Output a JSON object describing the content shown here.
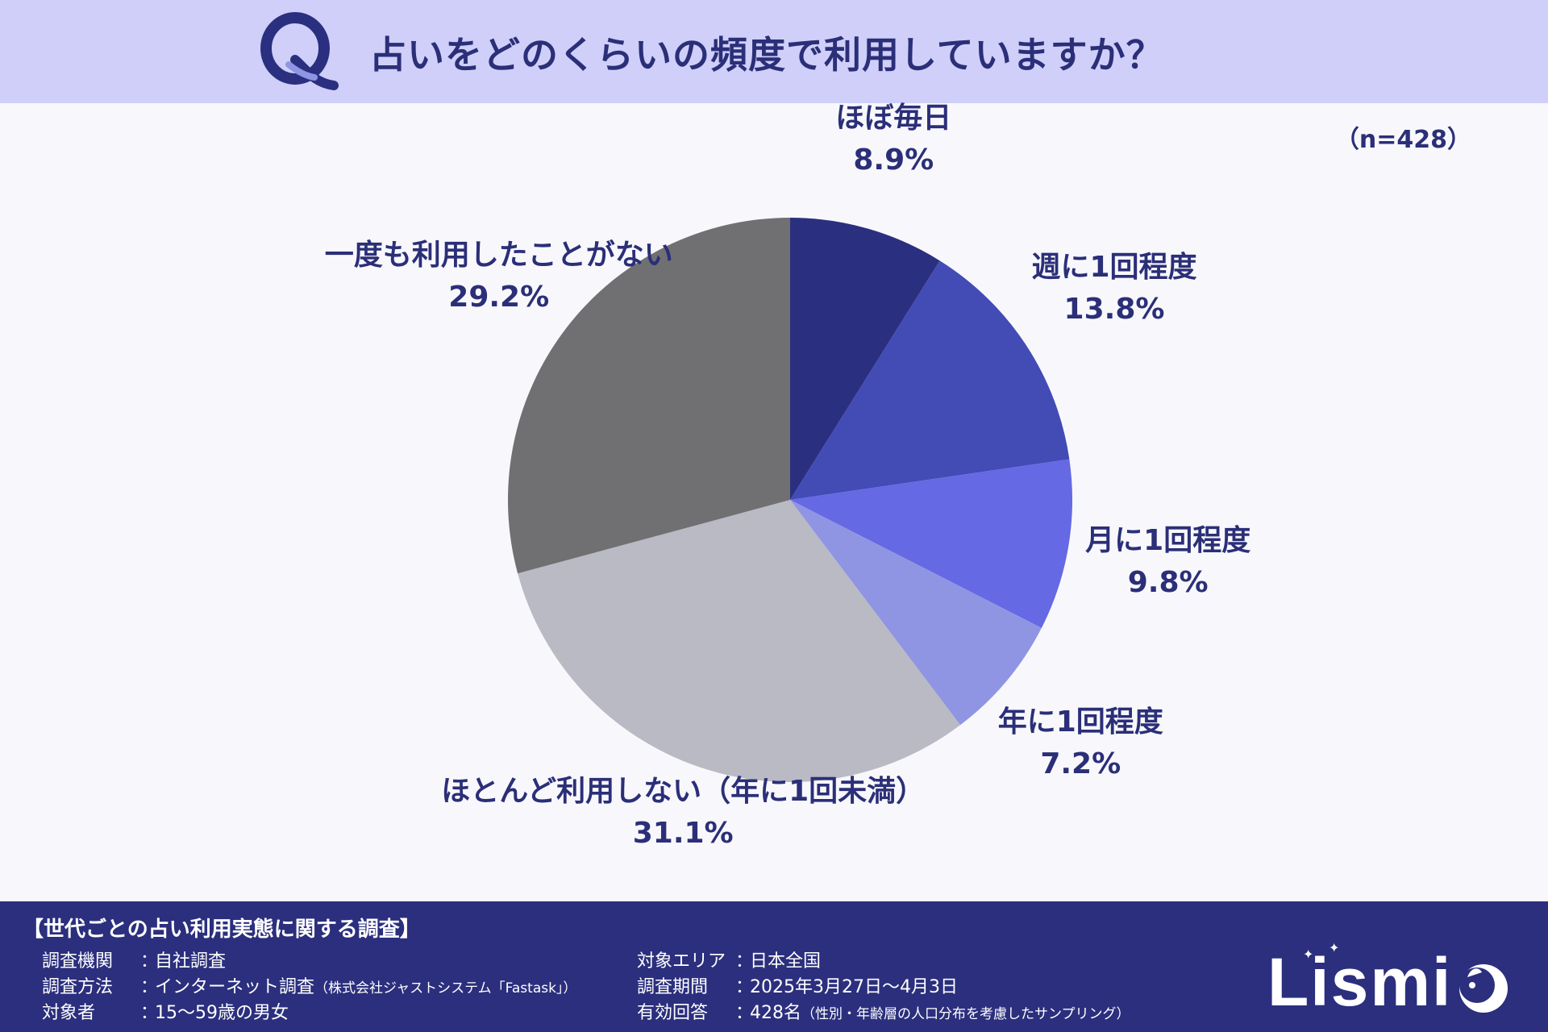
{
  "header": {
    "question": "占いをどのくらいの頻度で利用していますか？",
    "logo_letter": "Q"
  },
  "sample_size": "（n=428）",
  "chart_data": {
    "type": "pie",
    "title": "占いをどのくらいの頻度で利用していますか？",
    "categories": [
      "ほぼ毎日",
      "週に1回程度",
      "月に1回程度",
      "年に1回程度",
      "ほとんど利用しない（年に1回未満）",
      "一度も利用したことがない"
    ],
    "values": [
      8.9,
      13.8,
      9.8,
      7.2,
      31.1,
      29.2
    ],
    "value_labels": [
      "8.9%",
      "13.8%",
      "9.8%",
      "7.2%",
      "31.1%",
      "29.2%"
    ],
    "colors": [
      "#2b2f80",
      "#434bb5",
      "#6569e3",
      "#8f95e2",
      "#b9bac3",
      "#707073"
    ],
    "start": "12 o'clock",
    "direction": "clockwise"
  },
  "footer": {
    "survey_title": "【世代ごとの占い利用実態に関する調査】",
    "left": [
      {
        "label": "調査機関",
        "value": "自社調査",
        "note": ""
      },
      {
        "label": "調査方法",
        "value": "インターネット調査",
        "note": "（株式会社ジャストシステム「Fastask」）"
      },
      {
        "label": "対象者",
        "value": "15〜59歳の男女",
        "note": ""
      }
    ],
    "right": [
      {
        "label": "対象エリア",
        "value": "日本全国",
        "note": ""
      },
      {
        "label": "調査期間",
        "value": "2025年3月27日〜4月3日",
        "note": ""
      },
      {
        "label": "有効回答",
        "value": "428名",
        "note": "（性別・年齢層の人口分布を考慮したサンプリング）"
      }
    ],
    "separator": "：",
    "brand": "Lismi"
  }
}
